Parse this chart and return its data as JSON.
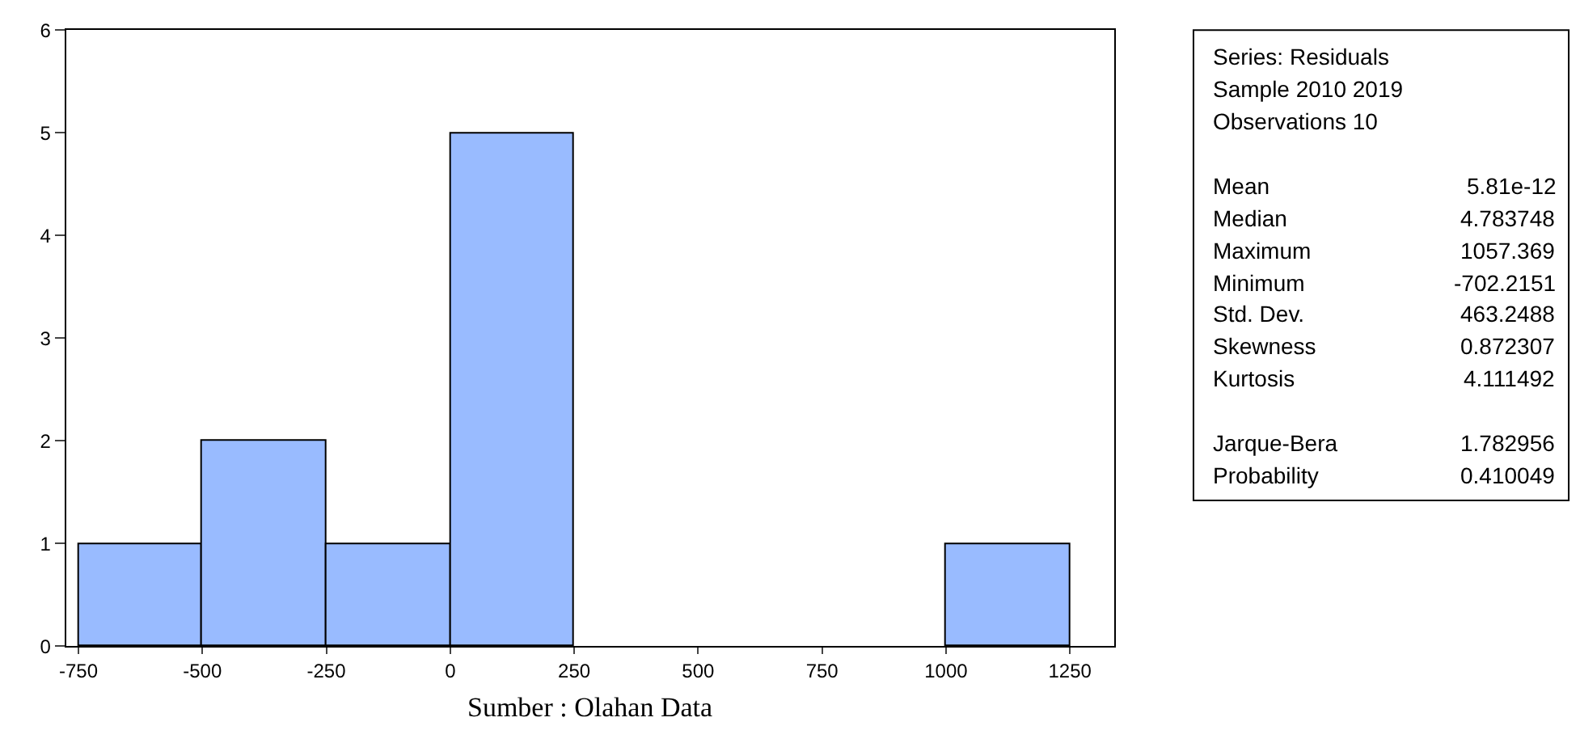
{
  "chart_data": {
    "type": "histogram",
    "bins": [
      -750,
      -500,
      -250,
      0,
      250,
      500,
      750,
      1000,
      1250
    ],
    "values": [
      1,
      2,
      1,
      5,
      0,
      0,
      0,
      1
    ],
    "color": "#99bbff",
    "xlim": [
      -775,
      1340
    ],
    "xticks": [
      -750,
      -500,
      -250,
      0,
      250,
      500,
      750,
      1000,
      1250
    ],
    "ylim": [
      0,
      6
    ],
    "yticks": [
      0,
      1,
      2,
      3,
      4,
      5,
      6
    ],
    "grid": false,
    "annotations": [
      "Sumber : Olahan Data",
      "Series: Residuals",
      "Sample 2010 2019",
      "Observations 10",
      "\nMean\t5.81e-12",
      "Median\t4.783748",
      "Maximum\t1057.369",
      "Minimum\t-702.2151",
      "Std. Dev.\t463.2488",
      "Skewness\t0.872307",
      "Kurtosis\t4.111492",
      "\nJarque-Bera\t1.782956",
      "Probability\t0.410049"
    ]
  }
}
